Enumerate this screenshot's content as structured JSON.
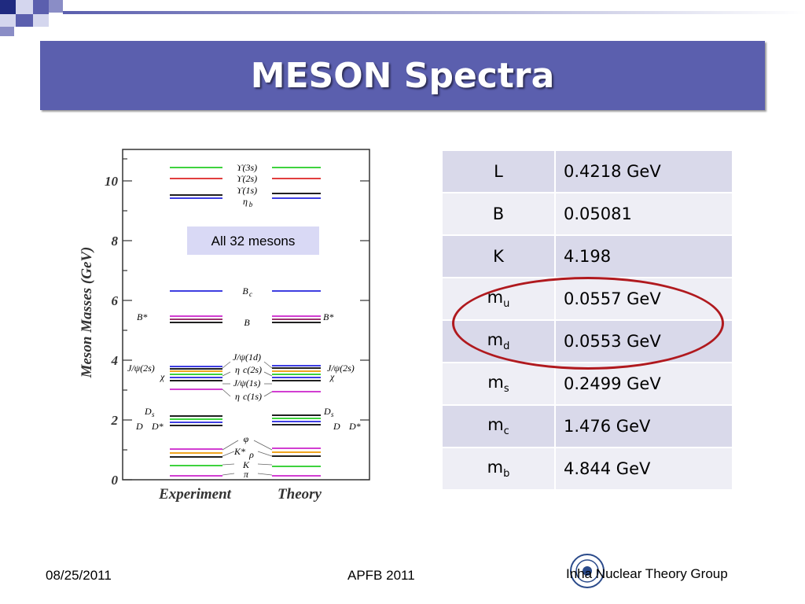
{
  "slide": {
    "title": "MESON Spectra",
    "footer": {
      "date": "08/25/2011",
      "event": "APFB 2011",
      "group": "Inha Nuclear Theory Group"
    }
  },
  "figure": {
    "y_axis_label": "Meson Masses (GeV)",
    "y_ticks": [
      "0",
      "2",
      "4",
      "6",
      "8",
      "10"
    ],
    "x_labels": [
      "Experiment",
      "Theory"
    ],
    "callout": "All 32 mesons",
    "level_labels": {
      "upsilon3s": "ϒ(3s)",
      "upsilon2s": "ϒ(2s)",
      "upsilon1s": "ϒ(1s)",
      "etab": "η",
      "etab_sub": "b",
      "bc": "B",
      "bc_sub": "c",
      "bstar": "B*",
      "bbar": "B",
      "jpsi1d": "J/ψ(1d)",
      "etac2s": "η",
      "etac2s_sub": "c(2s)",
      "jpsi1s": "J/ψ(1s)",
      "etac1s": "η",
      "etac1s_sub": "c(1s)",
      "jpsi2s": "J/ψ(2s)",
      "chi": "χ",
      "ds": "D",
      "ds_sub": "s",
      "dd": "D",
      "dstar": "D*",
      "phi": "φ",
      "kstar": "K*",
      "rho": "ρ",
      "kaon": "K",
      "pion": "π"
    },
    "level_colors": {
      "green": "#22cc22",
      "red": "#dd2222",
      "black": "#000000",
      "blue": "#2222dd",
      "magenta": "#cc22cc",
      "dark": "#333333",
      "orange": "#ee9900"
    }
  },
  "params": {
    "rows": [
      {
        "sym": "L",
        "sub": "",
        "val": "0.4218 GeV"
      },
      {
        "sym": "B",
        "sub": "",
        "val": "0.05081"
      },
      {
        "sym": "K",
        "sub": "",
        "val": "4.198"
      },
      {
        "sym": "m",
        "sub": "u",
        "val": "0.0557 GeV"
      },
      {
        "sym": "m",
        "sub": "d",
        "val": "0.0553 GeV"
      },
      {
        "sym": "m",
        "sub": "s",
        "val": "0.2499 GeV"
      },
      {
        "sym": "m",
        "sub": "c",
        "val": "1.476 GeV"
      },
      {
        "sym": "m",
        "sub": "b",
        "val": "4.844 GeV"
      }
    ]
  }
}
